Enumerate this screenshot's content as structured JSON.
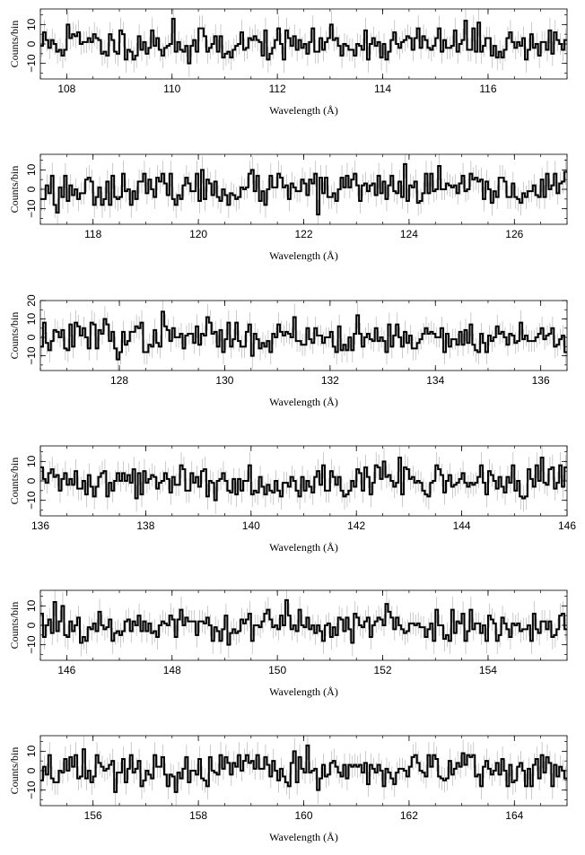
{
  "chart_data": [
    {
      "type": "line",
      "xlabel": "Wavelength (Å)",
      "ylabel": "Counts/bin",
      "xlim": [
        107.5,
        117.5
      ],
      "ylim": [
        -18,
        18
      ],
      "xticks": [
        108,
        110,
        112,
        114,
        116
      ],
      "yticks": [
        -10,
        0,
        10
      ],
      "ytick_labels": [
        "−10",
        "0",
        "10"
      ],
      "bin_width": 0.05,
      "series": [
        {
          "values": []
        }
      ],
      "seed": 11,
      "peaks": [
        {
          "x": 108.05,
          "y": 10
        },
        {
          "x": 110.0,
          "y": 13
        },
        {
          "x": 113.05,
          "y": 10
        },
        {
          "x": 115.6,
          "y": 12
        },
        {
          "x": 115.85,
          "y": 11
        },
        {
          "x": 114.1,
          "y": -8
        },
        {
          "x": 110.35,
          "y": -10
        }
      ]
    },
    {
      "type": "line",
      "xlabel": "Wavelength (Å)",
      "ylabel": "Counts/bin",
      "xlim": [
        117,
        127
      ],
      "ylim": [
        -18,
        18
      ],
      "xticks": [
        118,
        120,
        122,
        124,
        126
      ],
      "yticks": [
        -10,
        0,
        10
      ],
      "ytick_labels": [
        "−10",
        "0",
        "10"
      ],
      "bin_width": 0.05,
      "series": [
        {
          "values": []
        }
      ],
      "seed": 23,
      "peaks": [
        {
          "x": 117.35,
          "y": -12
        },
        {
          "x": 120.1,
          "y": 10
        },
        {
          "x": 121.0,
          "y": 10
        },
        {
          "x": 123.9,
          "y": 13
        },
        {
          "x": 124.6,
          "y": 12
        },
        {
          "x": 122.25,
          "y": -13
        },
        {
          "x": 126.95,
          "y": 9
        }
      ]
    },
    {
      "type": "line",
      "xlabel": "Wavelength (Å)",
      "ylabel": "Counts/bin",
      "xlim": [
        126.5,
        136.5
      ],
      "ylim": [
        -18,
        20
      ],
      "xticks": [
        128,
        130,
        132,
        134,
        136
      ],
      "yticks": [
        -10,
        0,
        10,
        20
      ],
      "ytick_labels": [
        "−10",
        "0",
        "10",
        "20"
      ],
      "bin_width": 0.05,
      "series": [
        {
          "values": []
        }
      ],
      "seed": 37,
      "peaks": [
        {
          "x": 127.7,
          "y": 10
        },
        {
          "x": 128.85,
          "y": 14
        },
        {
          "x": 129.65,
          "y": 11
        },
        {
          "x": 131.3,
          "y": 11
        },
        {
          "x": 132.5,
          "y": 12
        },
        {
          "x": 127.95,
          "y": -12
        },
        {
          "x": 130.5,
          "y": -10
        },
        {
          "x": 134.2,
          "y": -8
        }
      ]
    },
    {
      "type": "line",
      "xlabel": "Wavelength (Å)",
      "ylabel": "Counts/bin",
      "xlim": [
        136,
        146
      ],
      "ylim": [
        -18,
        18
      ],
      "xticks": [
        136,
        138,
        140,
        142,
        144,
        146
      ],
      "yticks": [
        -10,
        0,
        10
      ],
      "ytick_labels": [
        "−10",
        "0",
        "10"
      ],
      "bin_width": 0.05,
      "series": [
        {
          "values": []
        }
      ],
      "seed": 41,
      "peaks": [
        {
          "x": 142.85,
          "y": 12
        },
        {
          "x": 145.5,
          "y": 12
        },
        {
          "x": 142.5,
          "y": 10
        },
        {
          "x": 137.0,
          "y": -8
        },
        {
          "x": 137.85,
          "y": -9
        },
        {
          "x": 139.3,
          "y": -10
        },
        {
          "x": 145.2,
          "y": -9
        }
      ]
    },
    {
      "type": "line",
      "xlabel": "Wavelength (Å)",
      "ylabel": "Counts/bin",
      "xlim": [
        145.5,
        155.5
      ],
      "ylim": [
        -18,
        18
      ],
      "xticks": [
        146,
        148,
        150,
        152,
        154
      ],
      "yticks": [
        -10,
        0,
        10
      ],
      "ytick_labels": [
        "−10",
        "0",
        "10"
      ],
      "bin_width": 0.05,
      "series": [
        {
          "values": []
        }
      ],
      "seed": 53,
      "peaks": [
        {
          "x": 145.75,
          "y": 12
        },
        {
          "x": 150.2,
          "y": 13
        },
        {
          "x": 152.1,
          "y": 11
        },
        {
          "x": 145.95,
          "y": 10
        },
        {
          "x": 146.25,
          "y": -9
        },
        {
          "x": 149.05,
          "y": -10
        },
        {
          "x": 151.4,
          "y": -9
        }
      ]
    },
    {
      "type": "line",
      "xlabel": "Wavelength (Å)",
      "ylabel": "Counts/bin",
      "xlim": [
        155,
        165
      ],
      "ylim": [
        -18,
        18
      ],
      "xticks": [
        156,
        158,
        160,
        162,
        164
      ],
      "yticks": [
        -10,
        0,
        10
      ],
      "ytick_labels": [
        "−10",
        "0",
        "10"
      ],
      "bin_width": 0.05,
      "series": [
        {
          "values": []
        }
      ],
      "seed": 67,
      "peaks": [
        {
          "x": 155.8,
          "y": 11
        },
        {
          "x": 160.1,
          "y": 13
        },
        {
          "x": 159.8,
          "y": 10
        },
        {
          "x": 156.45,
          "y": -11
        },
        {
          "x": 157.6,
          "y": -11
        },
        {
          "x": 163.0,
          "y": 9
        },
        {
          "x": 160.25,
          "y": -10
        }
      ]
    }
  ]
}
